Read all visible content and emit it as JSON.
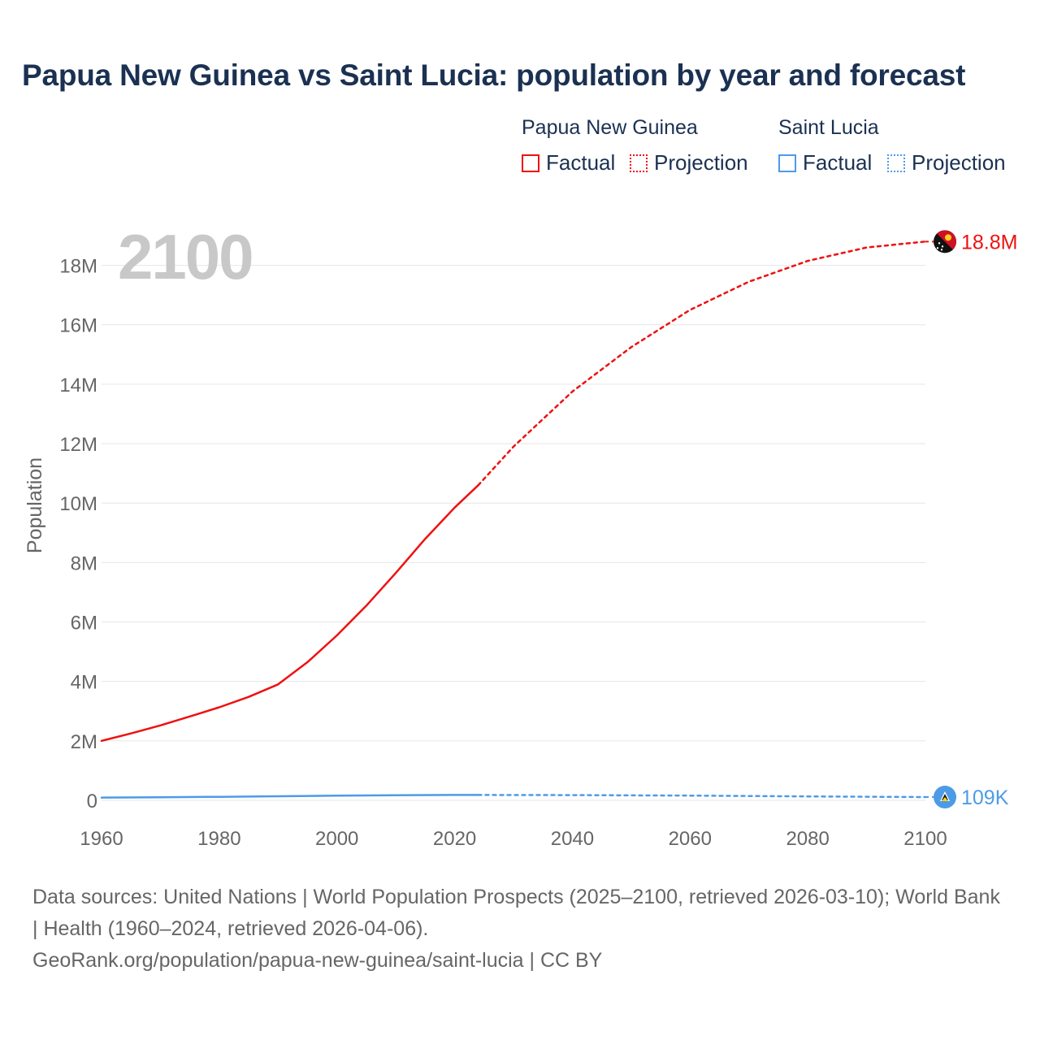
{
  "title": "Papua New Guinea vs Saint Lucia: population by year and forecast",
  "legend": {
    "groups": [
      {
        "name": "Papua New Guinea",
        "factual_label": "Factual",
        "projection_label": "Projection",
        "color": "#ee1111"
      },
      {
        "name": "Saint Lucia",
        "factual_label": "Factual",
        "projection_label": "Projection",
        "color": "#4d9be6"
      }
    ]
  },
  "footer": {
    "sources": "Data sources: United Nations | World Population Prospects (2025–2100, retrieved 2026-03-10); World Bank | Health (1960–2024, retrieved 2026-04-06).",
    "url": "GeoRank.org/population/papua-new-guinea/saint-lucia | CC BY"
  },
  "chart_data": {
    "type": "line",
    "title": "Papua New Guinea vs Saint Lucia: population by year and forecast",
    "xlabel": "",
    "ylabel": "Population",
    "year_watermark": "2100",
    "xlim": [
      1960,
      2100
    ],
    "ylim": [
      0,
      19000000
    ],
    "x_ticks": [
      1960,
      1980,
      2000,
      2020,
      2040,
      2060,
      2080,
      2100
    ],
    "y_ticks": [
      {
        "value": 0,
        "label": "0"
      },
      {
        "value": 2000000,
        "label": "2M"
      },
      {
        "value": 4000000,
        "label": "4M"
      },
      {
        "value": 6000000,
        "label": "6M"
      },
      {
        "value": 8000000,
        "label": "8M"
      },
      {
        "value": 10000000,
        "label": "10M"
      },
      {
        "value": 12000000,
        "label": "12M"
      },
      {
        "value": 14000000,
        "label": "14M"
      },
      {
        "value": 16000000,
        "label": "16M"
      },
      {
        "value": 18000000,
        "label": "18M"
      }
    ],
    "grid": true,
    "series": [
      {
        "name": "Papua New Guinea",
        "color": "#ee1111",
        "end_label": "18.8M",
        "factual": {
          "x": [
            1960,
            1965,
            1970,
            1975,
            1980,
            1985,
            1990,
            1995,
            2000,
            2005,
            2010,
            2015,
            2020,
            2024
          ],
          "y": [
            2000000,
            2250000,
            2520000,
            2820000,
            3130000,
            3480000,
            3900000,
            4650000,
            5550000,
            6550000,
            7650000,
            8800000,
            9850000,
            10600000
          ]
        },
        "projection": {
          "x": [
            2024,
            2030,
            2040,
            2050,
            2060,
            2070,
            2080,
            2090,
            2100
          ],
          "y": [
            10600000,
            11900000,
            13750000,
            15250000,
            16500000,
            17450000,
            18150000,
            18600000,
            18800000
          ]
        }
      },
      {
        "name": "Saint Lucia",
        "color": "#4d9be6",
        "end_label": "109K",
        "factual": {
          "x": [
            1960,
            1970,
            1980,
            1990,
            2000,
            2010,
            2020,
            2024
          ],
          "y": [
            90000,
            103000,
            118000,
            138000,
            157000,
            171000,
            180000,
            180000
          ]
        },
        "projection": {
          "x": [
            2024,
            2040,
            2060,
            2080,
            2100
          ],
          "y": [
            180000,
            176000,
            158000,
            132000,
            109000
          ]
        }
      }
    ]
  }
}
